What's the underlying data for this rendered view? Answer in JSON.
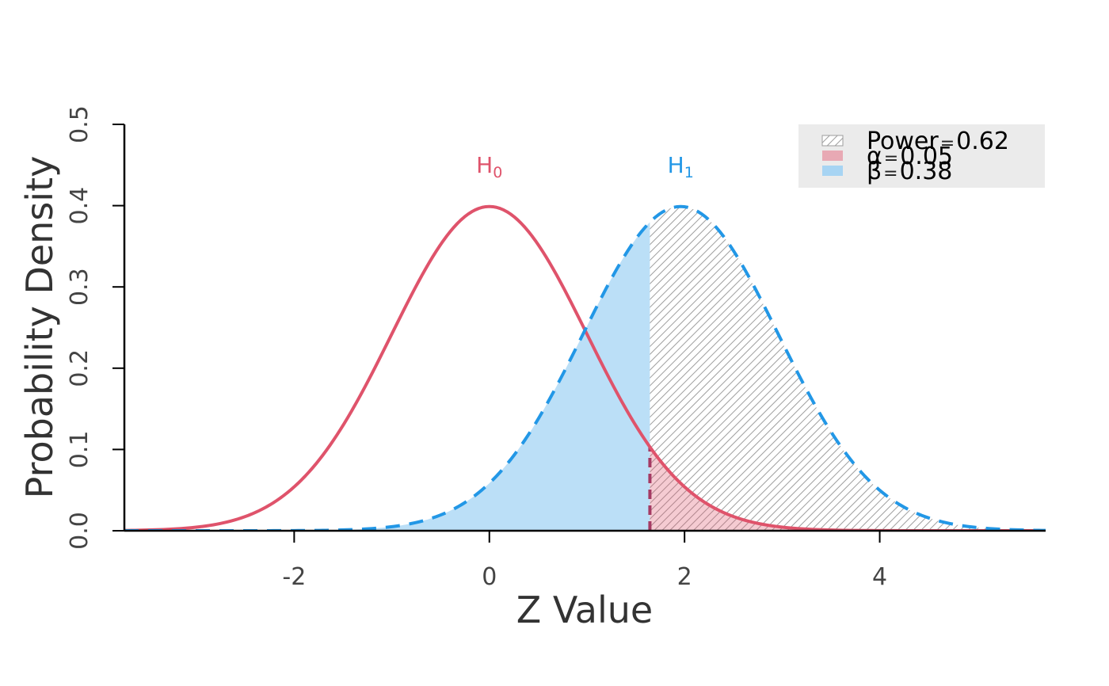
{
  "chart_data": {
    "type": "line",
    "xlabel": "Z Value",
    "ylabel": "Probability Density",
    "xlim": [
      -3.74,
      5.7
    ],
    "ylim": [
      0,
      0.5
    ],
    "x_ticks": [
      -2,
      0,
      2,
      4
    ],
    "x_tick_labels": [
      "-2",
      "0",
      "2",
      "4"
    ],
    "y_ticks": [
      0,
      0.1,
      0.2,
      0.3,
      0.4,
      0.5
    ],
    "y_tick_labels": [
      "0.0",
      "0.1",
      "0.2",
      "0.3",
      "0.4",
      "0.5"
    ],
    "critical_value": 1.645,
    "series": [
      {
        "name": "H0",
        "label_main": "H",
        "label_sub": "0",
        "mean": 0,
        "sd": 1,
        "color": "#DF536B",
        "line_style": "solid"
      },
      {
        "name": "H1",
        "label_main": "H",
        "label_sub": "1",
        "mean": 1.96,
        "sd": 1,
        "color": "#2297E6",
        "line_style": "dashed"
      }
    ],
    "shaded_regions": [
      {
        "name": "beta",
        "curve": "H1",
        "from": -3.74,
        "to": 1.645,
        "color": "#BBDFF7"
      },
      {
        "name": "power",
        "curve": "H1",
        "from": 1.645,
        "to": 5.7,
        "pattern": "hatch",
        "color": "#9E9E9E"
      },
      {
        "name": "alpha",
        "curve": "H0",
        "from": 1.645,
        "to": 5.7,
        "color": "#DF536B"
      }
    ],
    "legend": {
      "position": "top-right",
      "background": "#EBEBEB",
      "entries": [
        {
          "symbol": "Power",
          "eq": "=",
          "value": "0.62",
          "fill": "hatch"
        },
        {
          "symbol": "α",
          "eq": "=",
          "value": "0.05",
          "fill": "#E8A9B4"
        },
        {
          "symbol": "β",
          "eq": "=",
          "value": "0.38",
          "fill": "#A7D4F3"
        }
      ]
    }
  }
}
